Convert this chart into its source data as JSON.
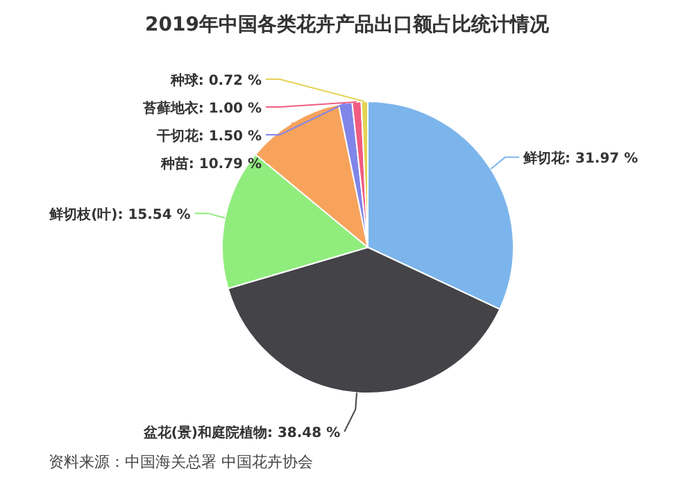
{
  "chart_data": {
    "type": "pie",
    "title": "2019年中国各类花卉产品出口额占比统计情况",
    "categories": [
      "鲜切花",
      "盆花(景)和庭院植物",
      "鲜切枝(叶)",
      "种苗",
      "干切花",
      "苔藓地衣",
      "种球"
    ],
    "values": [
      31.97,
      38.48,
      15.54,
      10.79,
      1.5,
      1.0,
      0.72
    ],
    "colors": [
      "#7cb5ec",
      "#434348",
      "#90ed7d",
      "#f7a35c",
      "#8085e9",
      "#f15c80",
      "#e4d354"
    ],
    "value_labels": [
      "31.97 %",
      "38.48 %",
      "15.54 %",
      "10.79 %",
      "1.50 %",
      "1.00 %",
      "0.72 %"
    ],
    "annotations": [
      "资料来源：中国海关总署 中国花卉协会"
    ]
  }
}
